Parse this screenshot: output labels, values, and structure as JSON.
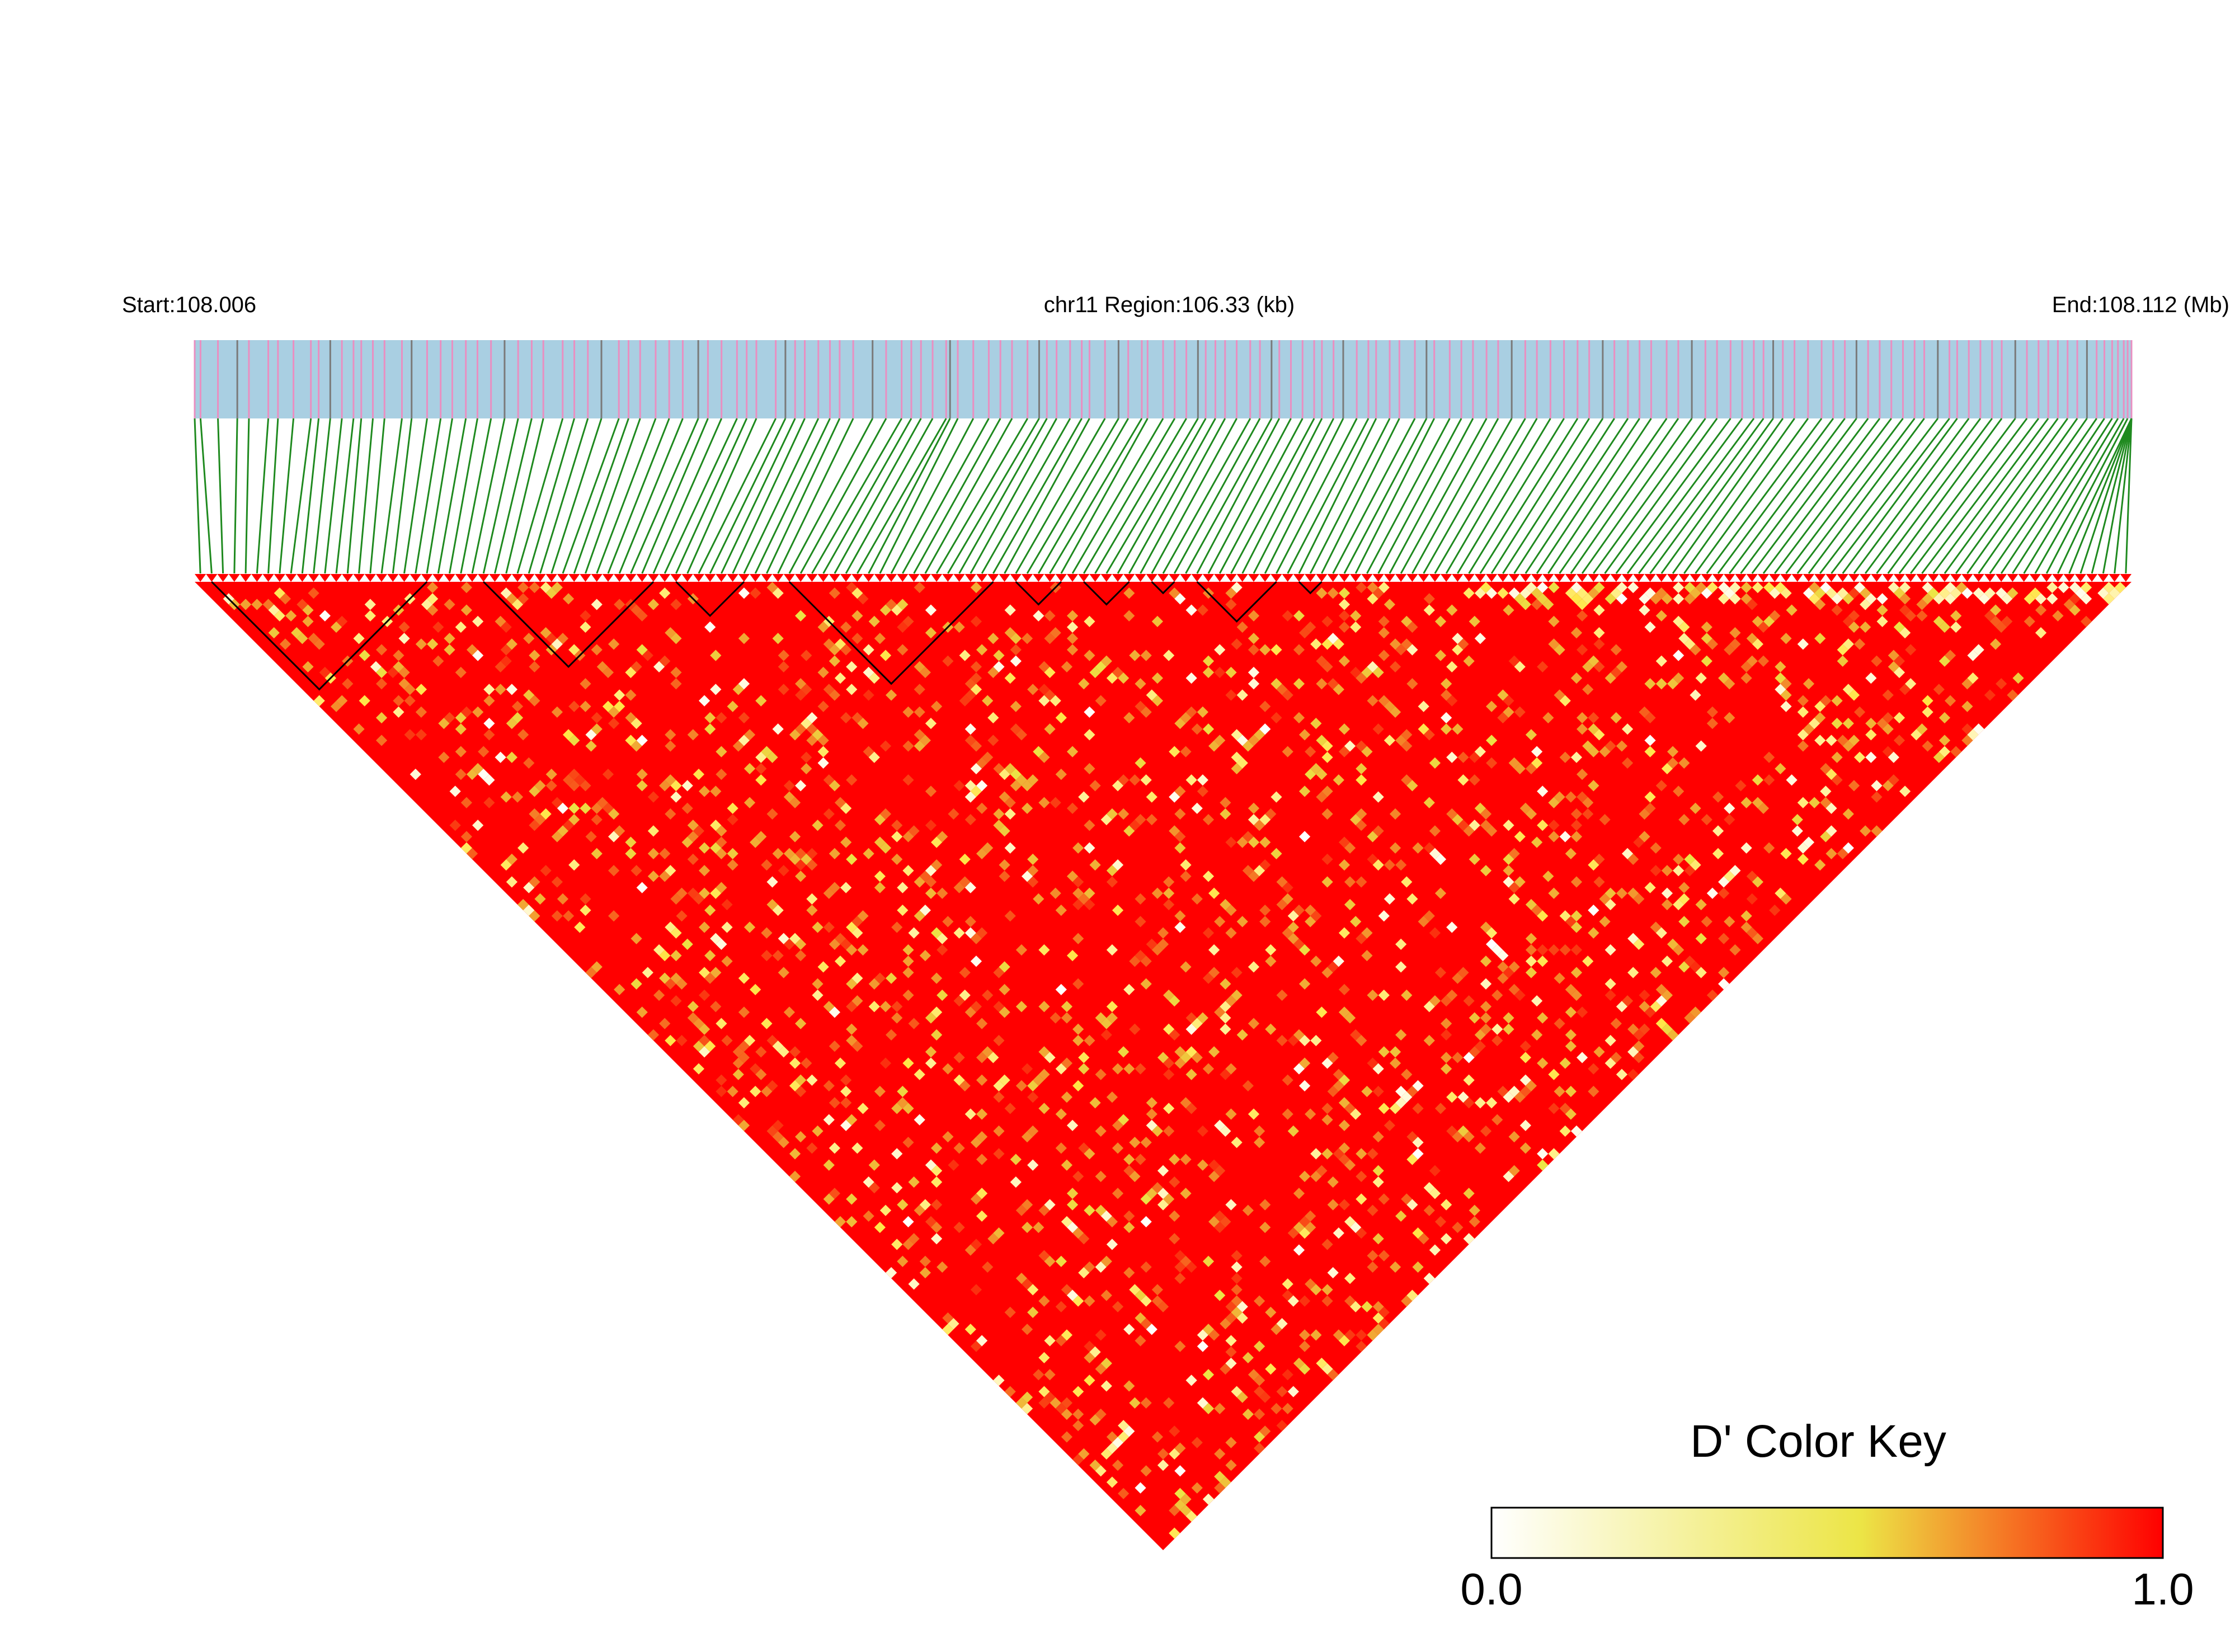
{
  "header": {
    "start_label": "Start:108.006",
    "region_label": "chr11 Region:106.33 (kb)",
    "end_label": "End:108.112 (Mb)"
  },
  "legend": {
    "title": "D' Color Key",
    "min_label": "0.0",
    "max_label": "1.0",
    "placement": "bottom-right"
  },
  "colors": {
    "track_fill": "#a9cfe2",
    "snp_line_a": "#e98fc1",
    "snp_line_b": "#7a7a7a",
    "connector": "#1f8a1f",
    "marker": "#ff0000",
    "block_outline": "#000000",
    "scale_low": "#ffffff",
    "scale_mid": "#ece546",
    "scale_high": "#ff0000"
  },
  "chart_data": {
    "type": "heatmap",
    "subtype": "LD triangle (D')",
    "region": {
      "chromosome": "chr11",
      "start_mb": 108.006,
      "end_mb": 108.112,
      "length_kb": 106.33
    },
    "snp_count": 171,
    "snp_positions_rel": [
      0,
      0.003,
      0.012,
      0.022,
      0.028,
      0.038,
      0.043,
      0.051,
      0.06,
      0.064,
      0.07,
      0.076,
      0.082,
      0.086,
      0.092,
      0.098,
      0.107,
      0.112,
      0.12,
      0.127,
      0.133,
      0.14,
      0.146,
      0.153,
      0.16,
      0.167,
      0.174,
      0.18,
      0.19,
      0.196,
      0.203,
      0.21,
      0.219,
      0.224,
      0.23,
      0.238,
      0.245,
      0.252,
      0.26,
      0.265,
      0.272,
      0.28,
      0.285,
      0.29,
      0.3,
      0.305,
      0.31,
      0.315,
      0.322,
      0.328,
      0.333,
      0.34,
      0.35,
      0.357,
      0.365,
      0.37,
      0.375,
      0.381,
      0.388,
      0.39,
      0.394,
      0.402,
      0.41,
      0.416,
      0.422,
      0.43,
      0.436,
      0.44,
      0.445,
      0.452,
      0.458,
      0.462,
      0.47,
      0.477,
      0.482,
      0.489,
      0.492,
      0.5,
      0.506,
      0.512,
      0.518,
      0.522,
      0.527,
      0.532,
      0.538,
      0.545,
      0.55,
      0.556,
      0.56,
      0.566,
      0.572,
      0.578,
      0.582,
      0.588,
      0.593,
      0.6,
      0.606,
      0.61,
      0.617,
      0.622,
      0.63,
      0.636,
      0.64,
      0.648,
      0.654,
      0.66,
      0.667,
      0.673,
      0.68,
      0.687,
      0.693,
      0.7,
      0.707,
      0.714,
      0.72,
      0.727,
      0.733,
      0.74,
      0.746,
      0.752,
      0.76,
      0.766,
      0.773,
      0.78,
      0.786,
      0.793,
      0.799,
      0.805,
      0.81,
      0.815,
      0.82,
      0.826,
      0.833,
      0.84,
      0.846,
      0.852,
      0.858,
      0.864,
      0.87,
      0.876,
      0.882,
      0.888,
      0.893,
      0.9,
      0.906,
      0.91,
      0.916,
      0.922,
      0.928,
      0.933,
      0.94,
      0.946,
      0.952,
      0.957,
      0.962,
      0.967,
      0.972,
      0.977,
      0.982,
      0.986,
      0.99,
      0.993,
      0.996,
      0.998,
      1,
      1,
      1,
      1,
      1,
      1,
      1
    ],
    "blocks": [
      {
        "snps": [
          1,
          20
        ]
      },
      {
        "snps": [
          25,
          40
        ]
      },
      {
        "snps": [
          42,
          48
        ]
      },
      {
        "snps": [
          52,
          70
        ]
      },
      {
        "snps": [
          72,
          76
        ]
      },
      {
        "snps": [
          78,
          82
        ]
      },
      {
        "snps": [
          84,
          86
        ]
      },
      {
        "snps": [
          88,
          95
        ]
      },
      {
        "snps": [
          97,
          99
        ]
      }
    ],
    "value_range": [
      0.0,
      1.0
    ],
    "color_scale": "white-yellow-red",
    "typical_value": 1.0,
    "notes_on_values": "D' is near 1.0 for most pairs; scattered lower values (about 0.0 to 0.8) appear along the diagonal edge and in streaks."
  }
}
